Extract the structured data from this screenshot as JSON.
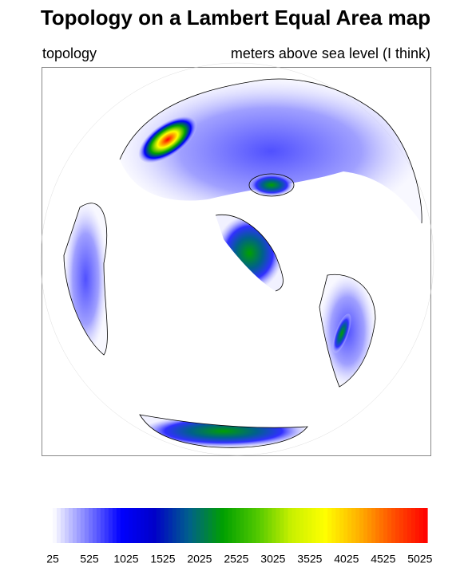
{
  "title": "Topology on a Lambert Equal Area map",
  "left_string": "topology",
  "right_string": "meters above sea level (I think)",
  "colorbar": {
    "lim": [
      25,
      5125
    ],
    "ticks": [
      25,
      525,
      1025,
      1525,
      2025,
      2525,
      3025,
      3525,
      4025,
      4525,
      5025
    ],
    "colors": [
      "#ffffff",
      "#8080ff",
      "#0000ff",
      "#0000c8",
      "#00608c",
      "#00a000",
      "#50c800",
      "#c8f000",
      "#ffff00",
      "#ffb000",
      "#ff5000",
      "#ff0000"
    ]
  }
}
